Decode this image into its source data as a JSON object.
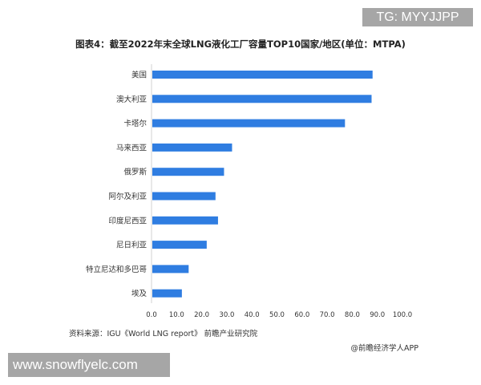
{
  "chart_data": {
    "type": "bar",
    "orientation": "horizontal",
    "title": "图表4：截至2022年末全球LNG液化工厂容量TOP10国家/地区(单位：MTPA)",
    "categories": [
      "美国",
      "澳大利亚",
      "卡塔尔",
      "马来西亚",
      "俄罗斯",
      "阿尔及利亚",
      "印度尼西亚",
      "尼日利亚",
      "特立尼达和多巴哥",
      "埃及"
    ],
    "values": [
      88.1,
      87.7,
      77.1,
      32.1,
      28.9,
      25.5,
      26.5,
      22.0,
      14.8,
      12.1
    ],
    "xlim": [
      0,
      100
    ],
    "xticks": [
      "0.0",
      "10.0",
      "20.0",
      "30.0",
      "40.0",
      "50.0",
      "60.0",
      "70.0",
      "80.0",
      "90.0",
      "100.0"
    ],
    "grid": false,
    "bar_color": "#2f7de1"
  },
  "source": "资料来源：IGU《World LNG report》 前瞻产业研究院",
  "credit": "@前瞻经济学人APP",
  "overlays": {
    "tg": "TG: MYYJJPP",
    "website": "www.snowflyelc.com"
  }
}
